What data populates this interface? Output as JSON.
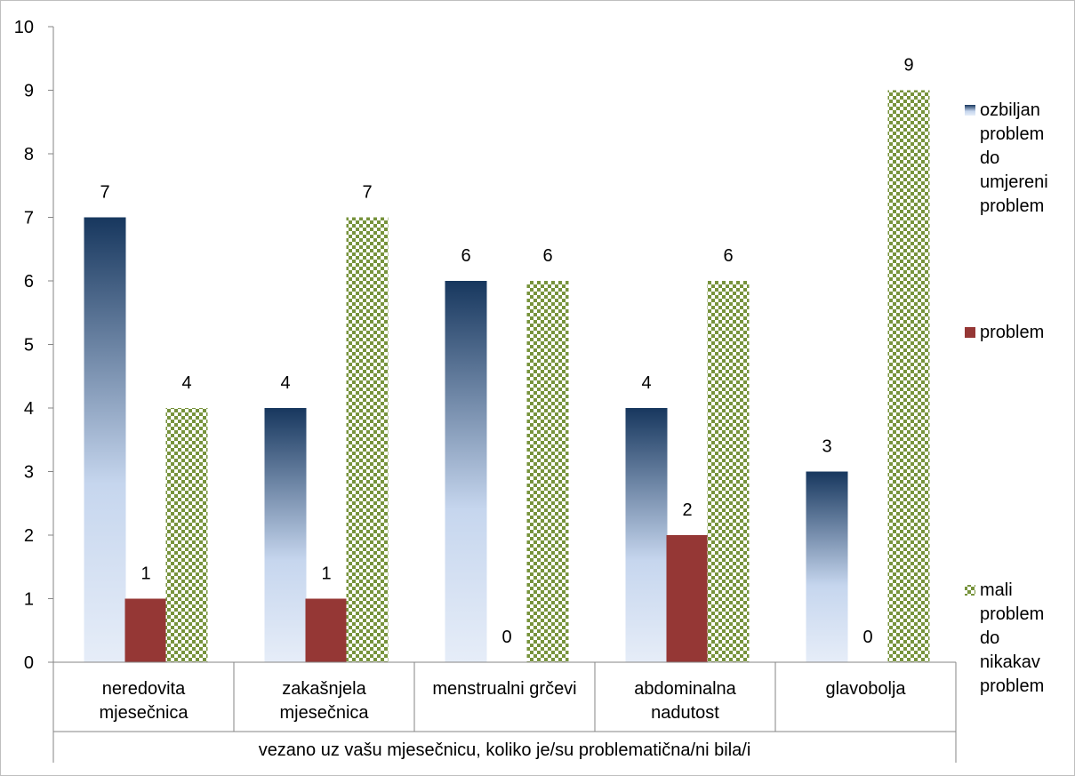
{
  "chart_data": {
    "type": "bar",
    "categories": [
      [
        "neredovita",
        "mjesečnica"
      ],
      [
        "zakašnjela",
        "mjesečnica"
      ],
      [
        "menstrualni grčevi"
      ],
      [
        "abdominalna",
        "nadutost"
      ],
      [
        "glavobolja"
      ]
    ],
    "group_label": "vezano uz vašu mjesečnicu, koliko je/su problematična/ni bila/i",
    "series": [
      {
        "name": [
          "ozbiljan",
          "problem",
          "do",
          "umjereni",
          "problem"
        ],
        "values": [
          7,
          4,
          6,
          4,
          3
        ],
        "color_top": "#17375e",
        "color_bottom": "#dce6f2"
      },
      {
        "name": [
          "problem"
        ],
        "values": [
          1,
          1,
          0,
          2,
          0
        ],
        "color": "#953735"
      },
      {
        "name": [
          "mali",
          "problem",
          "do",
          "nikakav",
          "problem"
        ],
        "values": [
          4,
          7,
          6,
          6,
          9
        ],
        "color": "#77933c"
      }
    ],
    "ylim": [
      0,
      10
    ],
    "yticks": [
      "0",
      "1",
      "2",
      "3",
      "4",
      "5",
      "6",
      "7",
      "8",
      "9",
      "10"
    ],
    "grid": false,
    "legend": "right"
  }
}
